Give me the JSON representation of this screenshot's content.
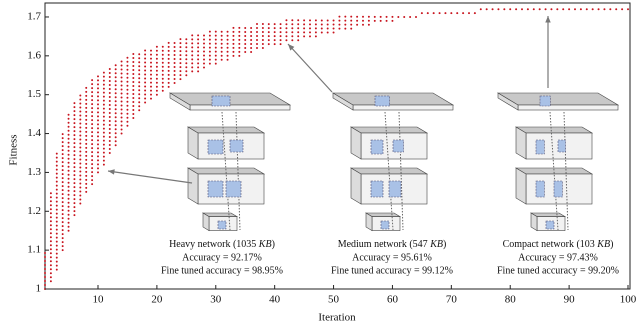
{
  "chart_data": {
    "type": "dot-range",
    "x_label": "Iteration",
    "y_label": "Fitness",
    "color": "#c8141e",
    "xlim": [
      1,
      100
    ],
    "xticks": [
      10,
      20,
      30,
      40,
      50,
      60,
      70,
      80,
      90,
      100
    ],
    "ylim": [
      1,
      1.72
    ],
    "yticks": [
      1,
      1.1,
      1.2,
      1.3,
      1.4,
      1.5,
      1.6,
      1.7
    ],
    "x": [
      1,
      2,
      3,
      4,
      5,
      6,
      7,
      8,
      9,
      10,
      11,
      12,
      13,
      14,
      15,
      16,
      17,
      18,
      19,
      20,
      21,
      22,
      23,
      24,
      25,
      26,
      27,
      28,
      29,
      30,
      31,
      32,
      33,
      34,
      35,
      36,
      37,
      38,
      39,
      40,
      41,
      42,
      43,
      44,
      45,
      46,
      47,
      48,
      49,
      50,
      51,
      52,
      53,
      54,
      55,
      56,
      57,
      58,
      59,
      60,
      61,
      62,
      63,
      64,
      65,
      66,
      67,
      68,
      69,
      70,
      71,
      72,
      73,
      74,
      75,
      76,
      77,
      78,
      79,
      80,
      81,
      82,
      83,
      84,
      85,
      86,
      87,
      88,
      89,
      90,
      91,
      92,
      93,
      94,
      95,
      96,
      97,
      98,
      99,
      100
    ],
    "low": [
      1.0,
      1.02,
      1.05,
      1.1,
      1.15,
      1.19,
      1.22,
      1.25,
      1.27,
      1.3,
      1.32,
      1.35,
      1.37,
      1.4,
      1.42,
      1.44,
      1.46,
      1.48,
      1.49,
      1.5,
      1.51,
      1.52,
      1.53,
      1.54,
      1.55,
      1.56,
      1.56,
      1.57,
      1.58,
      1.58,
      1.59,
      1.59,
      1.6,
      1.6,
      1.61,
      1.61,
      1.62,
      1.62,
      1.63,
      1.63,
      1.63,
      1.64,
      1.64,
      1.64,
      1.65,
      1.65,
      1.65,
      1.66,
      1.66,
      1.66,
      1.67,
      1.67,
      1.67,
      1.68,
      1.68,
      1.68,
      1.69,
      1.69,
      1.69,
      1.69,
      1.7,
      1.7,
      1.7,
      1.7,
      1.71,
      1.71,
      1.71,
      1.71,
      1.71,
      1.71,
      1.71,
      1.71,
      1.71,
      1.71,
      1.72,
      1.72,
      1.72,
      1.72,
      1.72,
      1.72,
      1.72,
      1.72,
      1.72,
      1.72,
      1.72,
      1.72,
      1.72,
      1.72,
      1.72,
      1.72,
      1.72,
      1.72,
      1.72,
      1.72,
      1.72,
      1.72,
      1.72,
      1.72,
      1.72,
      1.72
    ],
    "high": [
      1.1,
      1.25,
      1.35,
      1.4,
      1.45,
      1.48,
      1.5,
      1.52,
      1.54,
      1.55,
      1.56,
      1.57,
      1.58,
      1.59,
      1.6,
      1.61,
      1.61,
      1.62,
      1.62,
      1.63,
      1.63,
      1.64,
      1.64,
      1.65,
      1.65,
      1.66,
      1.66,
      1.66,
      1.67,
      1.67,
      1.67,
      1.67,
      1.68,
      1.68,
      1.68,
      1.68,
      1.69,
      1.69,
      1.69,
      1.69,
      1.69,
      1.7,
      1.7,
      1.7,
      1.7,
      1.7,
      1.7,
      1.7,
      1.7,
      1.7,
      1.71,
      1.71,
      1.71,
      1.71,
      1.71,
      1.71,
      1.71,
      1.71,
      1.71,
      1.71,
      1.71,
      1.71,
      1.71,
      1.71,
      1.72,
      1.72,
      1.72,
      1.72,
      1.72,
      1.72,
      1.72,
      1.72,
      1.72,
      1.72,
      1.72,
      1.72,
      1.72,
      1.72,
      1.72,
      1.72,
      1.72,
      1.72,
      1.72,
      1.72,
      1.72,
      1.72,
      1.72,
      1.72,
      1.72,
      1.72,
      1.72,
      1.72,
      1.72,
      1.72,
      1.72,
      1.72,
      1.72,
      1.72,
      1.72,
      1.72
    ],
    "annotations": [
      {
        "caption": [
          "Heavy network (1035 ",
          "KB",
          ")"
        ],
        "accuracy": "Accuracy = 92.17%",
        "fine_tuned": "Fine tuned accuracy = 98.95%"
      },
      {
        "caption": [
          "Medium network (547 ",
          "KB",
          ")"
        ],
        "accuracy": "Accuracy = 95.61%",
        "fine_tuned": "Fine tuned accuracy = 99.12%"
      },
      {
        "caption": [
          "Compact network (103 ",
          "KB",
          ")"
        ],
        "accuracy": "Accuracy = 97.43%",
        "fine_tuned": "Fine tuned accuracy = 99.20%"
      }
    ]
  }
}
